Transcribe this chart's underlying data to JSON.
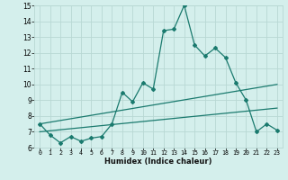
{
  "xlabel": "Humidex (Indice chaleur)",
  "ylabel": "",
  "background_color": "#d4efec",
  "grid_color": "#b8d8d4",
  "line_color": "#1a7a6e",
  "xlim": [
    -0.5,
    23.5
  ],
  "ylim": [
    6,
    15
  ],
  "xticks": [
    0,
    1,
    2,
    3,
    4,
    5,
    6,
    7,
    8,
    9,
    10,
    11,
    12,
    13,
    14,
    15,
    16,
    17,
    18,
    19,
    20,
    21,
    22,
    23
  ],
  "yticks": [
    6,
    7,
    8,
    9,
    10,
    11,
    12,
    13,
    14,
    15
  ],
  "series1_x": [
    0,
    1,
    2,
    3,
    4,
    5,
    6,
    7,
    8,
    9,
    10,
    11,
    12,
    13,
    14,
    15,
    16,
    17,
    18,
    19,
    20,
    21,
    22,
    23
  ],
  "series1_y": [
    7.5,
    6.8,
    6.3,
    6.7,
    6.4,
    6.6,
    6.7,
    7.5,
    9.5,
    8.9,
    10.1,
    9.7,
    13.4,
    13.5,
    15.0,
    12.5,
    11.8,
    12.3,
    11.7,
    10.1,
    9.0,
    7.0,
    7.5,
    7.1
  ],
  "series2_x": [
    0,
    23
  ],
  "series2_y": [
    7.5,
    10.0
  ],
  "series3_x": [
    0,
    23
  ],
  "series3_y": [
    7.0,
    8.5
  ]
}
